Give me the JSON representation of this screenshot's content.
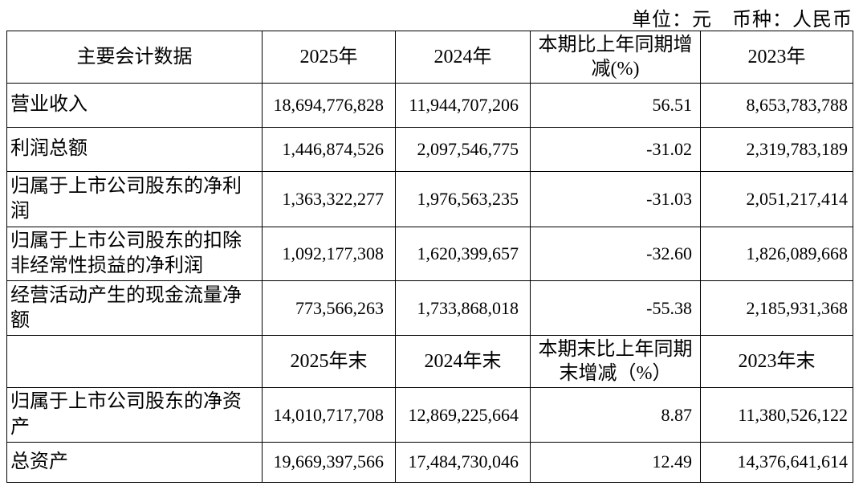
{
  "caption": {
    "text": "单位：元　币种：人民币"
  },
  "table": {
    "sections": [
      {
        "header": {
          "label": "主要会计数据",
          "col_2025": "2025年",
          "col_2024": "2024年",
          "col_pct": "本期比上年同期增减(%)",
          "col_2023": "2023年"
        },
        "rows": [
          {
            "label": "营业收入",
            "v2025": "18,694,776,828",
            "v2024": "11,944,707,206",
            "pct": "56.51",
            "v2023": "8,653,783,788"
          },
          {
            "label": "利润总额",
            "v2025": "1,446,874,526",
            "v2024": "2,097,546,775",
            "pct": "-31.02",
            "v2023": "2,319,783,189"
          },
          {
            "label": "归属于上市公司股东的净利润",
            "v2025": "1,363,322,277",
            "v2024": "1,976,563,235",
            "pct": "-31.03",
            "v2023": "2,051,217,414"
          },
          {
            "label": "归属于上市公司股东的扣除非经常性损益的净利润",
            "v2025": "1,092,177,308",
            "v2024": "1,620,399,657",
            "pct": "-32.60",
            "v2023": "1,826,089,668"
          },
          {
            "label": "经营活动产生的现金流量净额",
            "v2025": "773,566,263",
            "v2024": "1,733,868,018",
            "pct": "-55.38",
            "v2023": "2,185,931,368"
          }
        ]
      },
      {
        "header": {
          "label": "",
          "col_2025": "2025年末",
          "col_2024": "2024年末",
          "col_pct": "本期末比上年同期末增减（%）",
          "col_2023": "2023年末"
        },
        "rows": [
          {
            "label": "归属于上市公司股东的净资产",
            "v2025": "14,010,717,708",
            "v2024": "12,869,225,664",
            "pct": "8.87",
            "v2023": "11,380,526,122"
          },
          {
            "label": "总资产",
            "v2025": "19,669,397,566",
            "v2024": "17,484,730,046",
            "pct": "12.49",
            "v2023": "14,376,641,614"
          }
        ]
      }
    ]
  }
}
